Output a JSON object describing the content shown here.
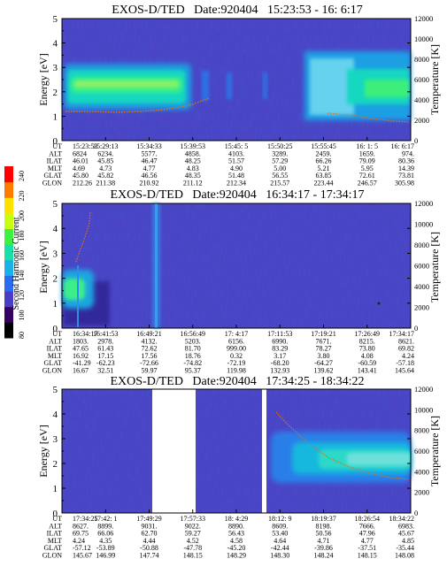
{
  "chart_data": {
    "type": "heatmap",
    "colorbar": {
      "label": "Second Harmonic Current",
      "ticks": [
        "80",
        "100",
        "120",
        "140",
        "160",
        "180",
        "200",
        "220",
        "240"
      ],
      "colors": [
        "#000000",
        "#35005f",
        "#4b3cc6",
        "#2a6cf0",
        "#1ab1e6",
        "#18e0a8",
        "#3ef040",
        "#c8ff10",
        "#ffe000",
        "#ff7a00",
        "#ff0000"
      ]
    },
    "common": {
      "ylabel_left": "Energy [eV]",
      "ylabel_right": "Temperature [K]",
      "yticks_left": [
        "0",
        "1",
        "2",
        "3",
        "4",
        "5"
      ],
      "yticks_right": [
        "0",
        "2000",
        "4000",
        "6000",
        "8000",
        "10000",
        "12000"
      ],
      "ylim_left": [
        0,
        5
      ],
      "ylim_right": [
        0,
        12000
      ],
      "row_labels": [
        "UT",
        "ALT",
        "ILAT",
        "MLT",
        "GLAT",
        "GLON"
      ]
    },
    "panels": [
      {
        "title": "EXOS-D/TED   Date:920404   15:23:53 - 16: 6:17",
        "columns": [
          [
            "15:23:53",
            "6824",
            "46.01",
            "4.69",
            "45.80",
            "212.26"
          ],
          [
            "15:29:13",
            "6234.",
            "45.85",
            "4.73",
            "45.82",
            "211.38"
          ],
          [
            "15:34:33",
            "5577.",
            "46.47",
            "4.77",
            "46.56",
            "210.92"
          ],
          [
            "15:39:53",
            "4858.",
            "48.25",
            "4.83",
            "48.35",
            "211.12"
          ],
          [
            "15:45: 5",
            "4103.",
            "51.57",
            "4.90",
            "51.48",
            "212.34"
          ],
          [
            "15:50:25",
            "3289.",
            "57.29",
            "5.00",
            "56.55",
            "215.57"
          ],
          [
            "15:55:45",
            "2459.",
            "66.26",
            "5.21",
            "63.85",
            "223.44"
          ],
          [
            "16: 1: 5",
            "1659.",
            "79.09",
            "5.95",
            "72.61",
            "246.57"
          ],
          [
            "16: 6:17",
            "974.",
            "80.36",
            "14.39",
            "73.81",
            "305.98"
          ]
        ]
      },
      {
        "title": "EXOS-D/TED   Date:920404   16:34:17 - 17:34:17",
        "columns": [
          [
            "16:34:17",
            "1803.",
            "47.65",
            "16.92",
            "-41.29",
            "16.67"
          ],
          [
            "16:41:53",
            "2978.",
            "61.43",
            "17.15",
            "-62.23",
            "32.51"
          ],
          [
            "16:49:21",
            "4132.",
            "72.62",
            "17.56",
            "-72.66",
            "59.97"
          ],
          [
            "16:56:49",
            "5203.",
            "81.70",
            "18.76",
            "-74.82",
            "95.37"
          ],
          [
            "17: 4:17",
            "6156.",
            "999.00",
            "0.32",
            "-72.19",
            "119.98"
          ],
          [
            "17:11:53",
            "6990.",
            "83.29",
            "3.17",
            "-68.20",
            "132.93"
          ],
          [
            "17:19:21",
            "7671.",
            "78.27",
            "3.80",
            "-64.27",
            "139.62"
          ],
          [
            "17:26:49",
            "8215.",
            "73.80",
            "4.08",
            "-60.59",
            "143.41"
          ],
          [
            "17:34:17",
            "8621.",
            "69.82",
            "4.24",
            "-57.18",
            "145.64"
          ]
        ]
      },
      {
        "title": "EXOS-D/TED   Date:920404   17:34:25 - 18:34:22",
        "columns": [
          [
            "17:34:25",
            "8627.",
            "69.75",
            "4.24",
            "-57.12",
            "145.67"
          ],
          [
            "17:42: 1",
            "8899.",
            "66.06",
            "4.35",
            "-53.89",
            "146.99"
          ],
          [
            "17:49:29",
            "9031.",
            "62.70",
            "4.44",
            "-50.88",
            "147.74"
          ],
          [
            "17:57:33",
            "9022.",
            "59.27",
            "4.52",
            "-47.78",
            "148.15"
          ],
          [
            "18: 4:29",
            "8890.",
            "56.43",
            "4.58",
            "-45.20",
            "148.29"
          ],
          [
            "18:12: 9",
            "8609.",
            "53.40",
            "4.64",
            "-42.44",
            "148.30"
          ],
          [
            "18:19:37",
            "8198.",
            "50.56",
            "4.71",
            "-39.86",
            "148.24"
          ],
          [
            "18:26:54",
            "7666.",
            "47.96",
            "4.77",
            "-37.51",
            "148.15"
          ],
          [
            "18:34:22",
            "6983.",
            "45.67",
            "4.85",
            "-35.44",
            "148.08"
          ]
        ]
      }
    ]
  }
}
